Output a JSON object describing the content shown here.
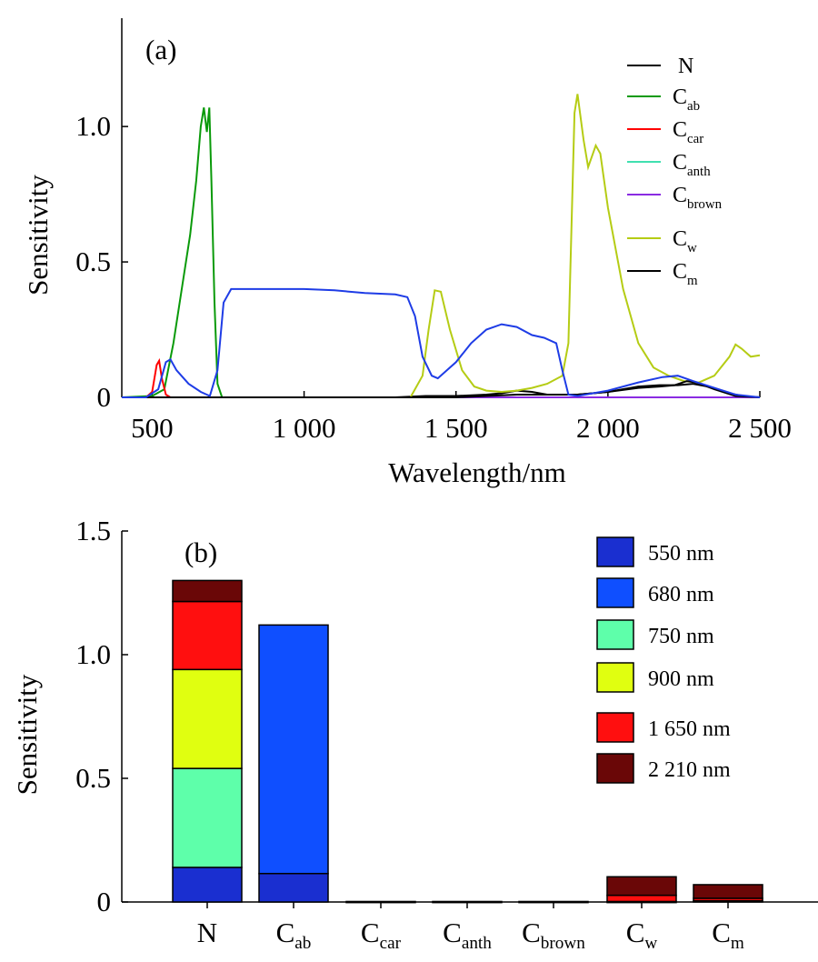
{
  "chart_data": [
    {
      "type": "line",
      "panel_label": "(a)",
      "xlabel": "Wavelength/nm",
      "ylabel": "Sensitivity",
      "xlim": [
        400,
        2500
      ],
      "ylim": [
        0,
        1.4
      ],
      "x_ticks": [
        {
          "value": 500,
          "label": "500"
        },
        {
          "value": 1000,
          "label": "1 000"
        },
        {
          "value": 1500,
          "label": "1 500"
        },
        {
          "value": 2000,
          "label": "2 000"
        },
        {
          "value": 2500,
          "label": "2 500"
        }
      ],
      "y_ticks": [
        {
          "value": 0,
          "label": "0"
        },
        {
          "value": 0.5,
          "label": "0.5"
        },
        {
          "value": 1.0,
          "label": "1.0"
        }
      ],
      "legend_position": "top-right",
      "series": [
        {
          "name": "N",
          "base": "N",
          "sub": "",
          "color": "#000000",
          "in_legend": true,
          "points": [
            [
              400,
              0
            ],
            [
              1300,
              0
            ],
            [
              1400,
              0.005
            ],
            [
              1500,
              0.005
            ],
            [
              1600,
              0.01
            ],
            [
              1650,
              0.015
            ],
            [
              1700,
              0.025
            ],
            [
              1750,
              0.02
            ],
            [
              1800,
              0.01
            ],
            [
              1900,
              0.01
            ],
            [
              2000,
              0.02
            ],
            [
              2100,
              0.04
            ],
            [
              2170,
              0.045
            ],
            [
              2230,
              0.045
            ],
            [
              2280,
              0.05
            ],
            [
              2330,
              0.04
            ],
            [
              2400,
              0.015
            ],
            [
              2450,
              0.003
            ],
            [
              2500,
              0
            ]
          ]
        },
        {
          "name": "Cab",
          "base": "C",
          "sub": "ab",
          "color": "#0a9a0a",
          "in_legend": true,
          "points": [
            [
              400,
              0
            ],
            [
              500,
              0.005
            ],
            [
              540,
              0.03
            ],
            [
              570,
              0.2
            ],
            [
              600,
              0.42
            ],
            [
              625,
              0.6
            ],
            [
              645,
              0.8
            ],
            [
              660,
              1.0
            ],
            [
              670,
              1.07
            ],
            [
              680,
              0.98
            ],
            [
              688,
              1.07
            ],
            [
              695,
              0.8
            ],
            [
              705,
              0.35
            ],
            [
              715,
              0.05
            ],
            [
              730,
              0
            ],
            [
              2500,
              0
            ]
          ]
        },
        {
          "name": "Ccar",
          "base": "C",
          "sub": "car",
          "color": "#ff0000",
          "in_legend": true,
          "points": [
            [
              400,
              0
            ],
            [
              480,
              0
            ],
            [
              500,
              0.02
            ],
            [
              515,
              0.12
            ],
            [
              523,
              0.135
            ],
            [
              532,
              0.07
            ],
            [
              545,
              0.01
            ],
            [
              560,
              0
            ],
            [
              2500,
              0
            ]
          ]
        },
        {
          "name": "Canth",
          "base": "C",
          "sub": "anth",
          "color": "#40e0b0",
          "in_legend": true,
          "points": [
            [
              400,
              0
            ],
            [
              2500,
              0
            ]
          ]
        },
        {
          "name": "Cbrown",
          "base": "C",
          "sub": "brown",
          "color": "#8a2be2",
          "in_legend": true,
          "points": [
            [
              1310,
              0
            ],
            [
              2500,
              0
            ]
          ]
        },
        {
          "name": "Cw",
          "base": "C",
          "sub": "w",
          "color": "#b5cc14",
          "in_legend": true,
          "points": [
            [
              400,
              0
            ],
            [
              1350,
              0
            ],
            [
              1390,
              0.08
            ],
            [
              1410,
              0.25
            ],
            [
              1430,
              0.395
            ],
            [
              1450,
              0.39
            ],
            [
              1480,
              0.25
            ],
            [
              1520,
              0.1
            ],
            [
              1560,
              0.04
            ],
            [
              1600,
              0.025
            ],
            [
              1650,
              0.02
            ],
            [
              1700,
              0.025
            ],
            [
              1750,
              0.035
            ],
            [
              1800,
              0.05
            ],
            [
              1850,
              0.08
            ],
            [
              1870,
              0.2
            ],
            [
              1890,
              1.05
            ],
            [
              1900,
              1.12
            ],
            [
              1920,
              0.95
            ],
            [
              1935,
              0.85
            ],
            [
              1960,
              0.93
            ],
            [
              1975,
              0.9
            ],
            [
              2000,
              0.7
            ],
            [
              2050,
              0.4
            ],
            [
              2100,
              0.2
            ],
            [
              2150,
              0.11
            ],
            [
              2200,
              0.08
            ],
            [
              2250,
              0.06
            ],
            [
              2300,
              0.055
            ],
            [
              2350,
              0.08
            ],
            [
              2400,
              0.15
            ],
            [
              2420,
              0.195
            ],
            [
              2440,
              0.18
            ],
            [
              2470,
              0.15
            ],
            [
              2500,
              0.155
            ]
          ]
        },
        {
          "name": "Cm",
          "base": "C",
          "sub": "m",
          "color": "#000000",
          "in_legend": true,
          "points": [
            [
              400,
              0
            ],
            [
              1500,
              0
            ],
            [
              1600,
              0.005
            ],
            [
              1700,
              0.01
            ],
            [
              1800,
              0.01
            ],
            [
              1900,
              0.01
            ],
            [
              2000,
              0.02
            ],
            [
              2100,
              0.035
            ],
            [
              2170,
              0.04
            ],
            [
              2220,
              0.045
            ],
            [
              2260,
              0.06
            ],
            [
              2290,
              0.055
            ],
            [
              2350,
              0.03
            ],
            [
              2420,
              0.005
            ],
            [
              2500,
              0
            ]
          ]
        },
        {
          "name": "",
          "base": "",
          "sub": "",
          "color": "#1e3ce6",
          "in_legend": false,
          "points": [
            [
              400,
              0
            ],
            [
              480,
              0
            ],
            [
              520,
              0.03
            ],
            [
              545,
              0.13
            ],
            [
              560,
              0.14
            ],
            [
              580,
              0.1
            ],
            [
              620,
              0.05
            ],
            [
              660,
              0.02
            ],
            [
              690,
              0.005
            ],
            [
              715,
              0.1
            ],
            [
              735,
              0.35
            ],
            [
              760,
              0.4
            ],
            [
              1000,
              0.4
            ],
            [
              1100,
              0.395
            ],
            [
              1200,
              0.385
            ],
            [
              1300,
              0.38
            ],
            [
              1340,
              0.37
            ],
            [
              1365,
              0.3
            ],
            [
              1390,
              0.15
            ],
            [
              1420,
              0.08
            ],
            [
              1440,
              0.07
            ],
            [
              1500,
              0.13
            ],
            [
              1550,
              0.2
            ],
            [
              1600,
              0.25
            ],
            [
              1650,
              0.27
            ],
            [
              1700,
              0.26
            ],
            [
              1750,
              0.23
            ],
            [
              1790,
              0.22
            ],
            [
              1830,
              0.2
            ],
            [
              1850,
              0.1
            ],
            [
              1870,
              0.01
            ],
            [
              1900,
              0.005
            ],
            [
              2000,
              0.025
            ],
            [
              2100,
              0.055
            ],
            [
              2180,
              0.075
            ],
            [
              2230,
              0.08
            ],
            [
              2280,
              0.06
            ],
            [
              2350,
              0.035
            ],
            [
              2420,
              0.01
            ],
            [
              2500,
              0
            ]
          ]
        }
      ]
    },
    {
      "type": "bar",
      "stacked": true,
      "panel_label": "(b)",
      "xlabel": "",
      "ylabel": "Sensitivity",
      "ylim": [
        0,
        1.5
      ],
      "y_ticks": [
        {
          "value": 0,
          "label": "0"
        },
        {
          "value": 0.5,
          "label": "0.5"
        },
        {
          "value": 1.0,
          "label": "1.0"
        },
        {
          "value": 1.5,
          "label": "1.5"
        }
      ],
      "categories": [
        {
          "base": "N",
          "sub": ""
        },
        {
          "base": "C",
          "sub": "ab"
        },
        {
          "base": "C",
          "sub": "car"
        },
        {
          "base": "C",
          "sub": "anth"
        },
        {
          "base": "C",
          "sub": "brown"
        },
        {
          "base": "C",
          "sub": "w"
        },
        {
          "base": "C",
          "sub": "m"
        }
      ],
      "legend_position": "top-right",
      "series": [
        {
          "name": "550 nm",
          "color": "#1a2fd0",
          "values": [
            0.14,
            0.115,
            0.002,
            0.002,
            0.002,
            0.002,
            0.005
          ]
        },
        {
          "name": "680 nm",
          "color": "#0f4fff",
          "values": [
            0,
            1.005,
            0,
            0,
            0,
            0,
            0
          ]
        },
        {
          "name": "750 nm",
          "color": "#5effaa",
          "values": [
            0.4,
            0,
            0,
            0,
            0,
            0,
            0
          ]
        },
        {
          "name": "900 nm",
          "color": "#e0ff10",
          "values": [
            0.4,
            0,
            0,
            0,
            0,
            0,
            0
          ]
        },
        {
          "name": "1 650 nm",
          "color": "#ff0f0f",
          "values": [
            0.275,
            0,
            0,
            0,
            0,
            0.025,
            0.01
          ]
        },
        {
          "name": "2 210 nm",
          "color": "#6a0707",
          "values": [
            0.085,
            0,
            0,
            0,
            0,
            0.075,
            0.055
          ]
        }
      ]
    }
  ]
}
